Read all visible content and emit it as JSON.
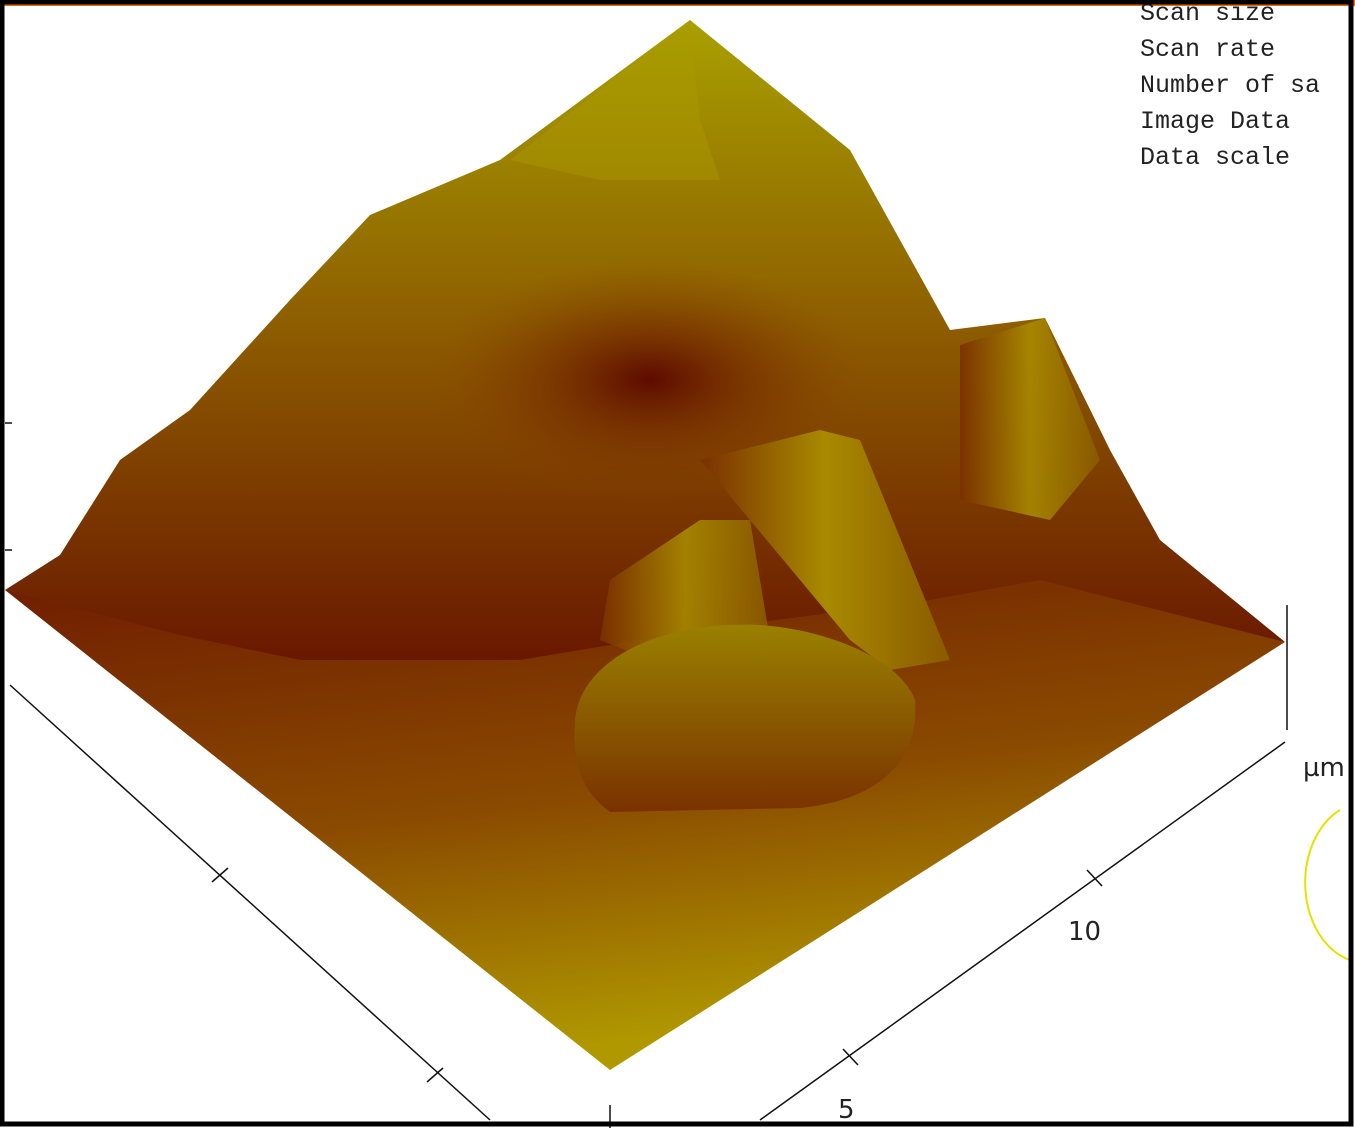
{
  "info_panel": {
    "lines": [
      "Scan size",
      "Scan rate",
      "Number of sa",
      "Image Data",
      "Data scale"
    ]
  },
  "axes": {
    "unit": "µm",
    "right_axis_ticks": [
      "10",
      "5"
    ]
  }
}
